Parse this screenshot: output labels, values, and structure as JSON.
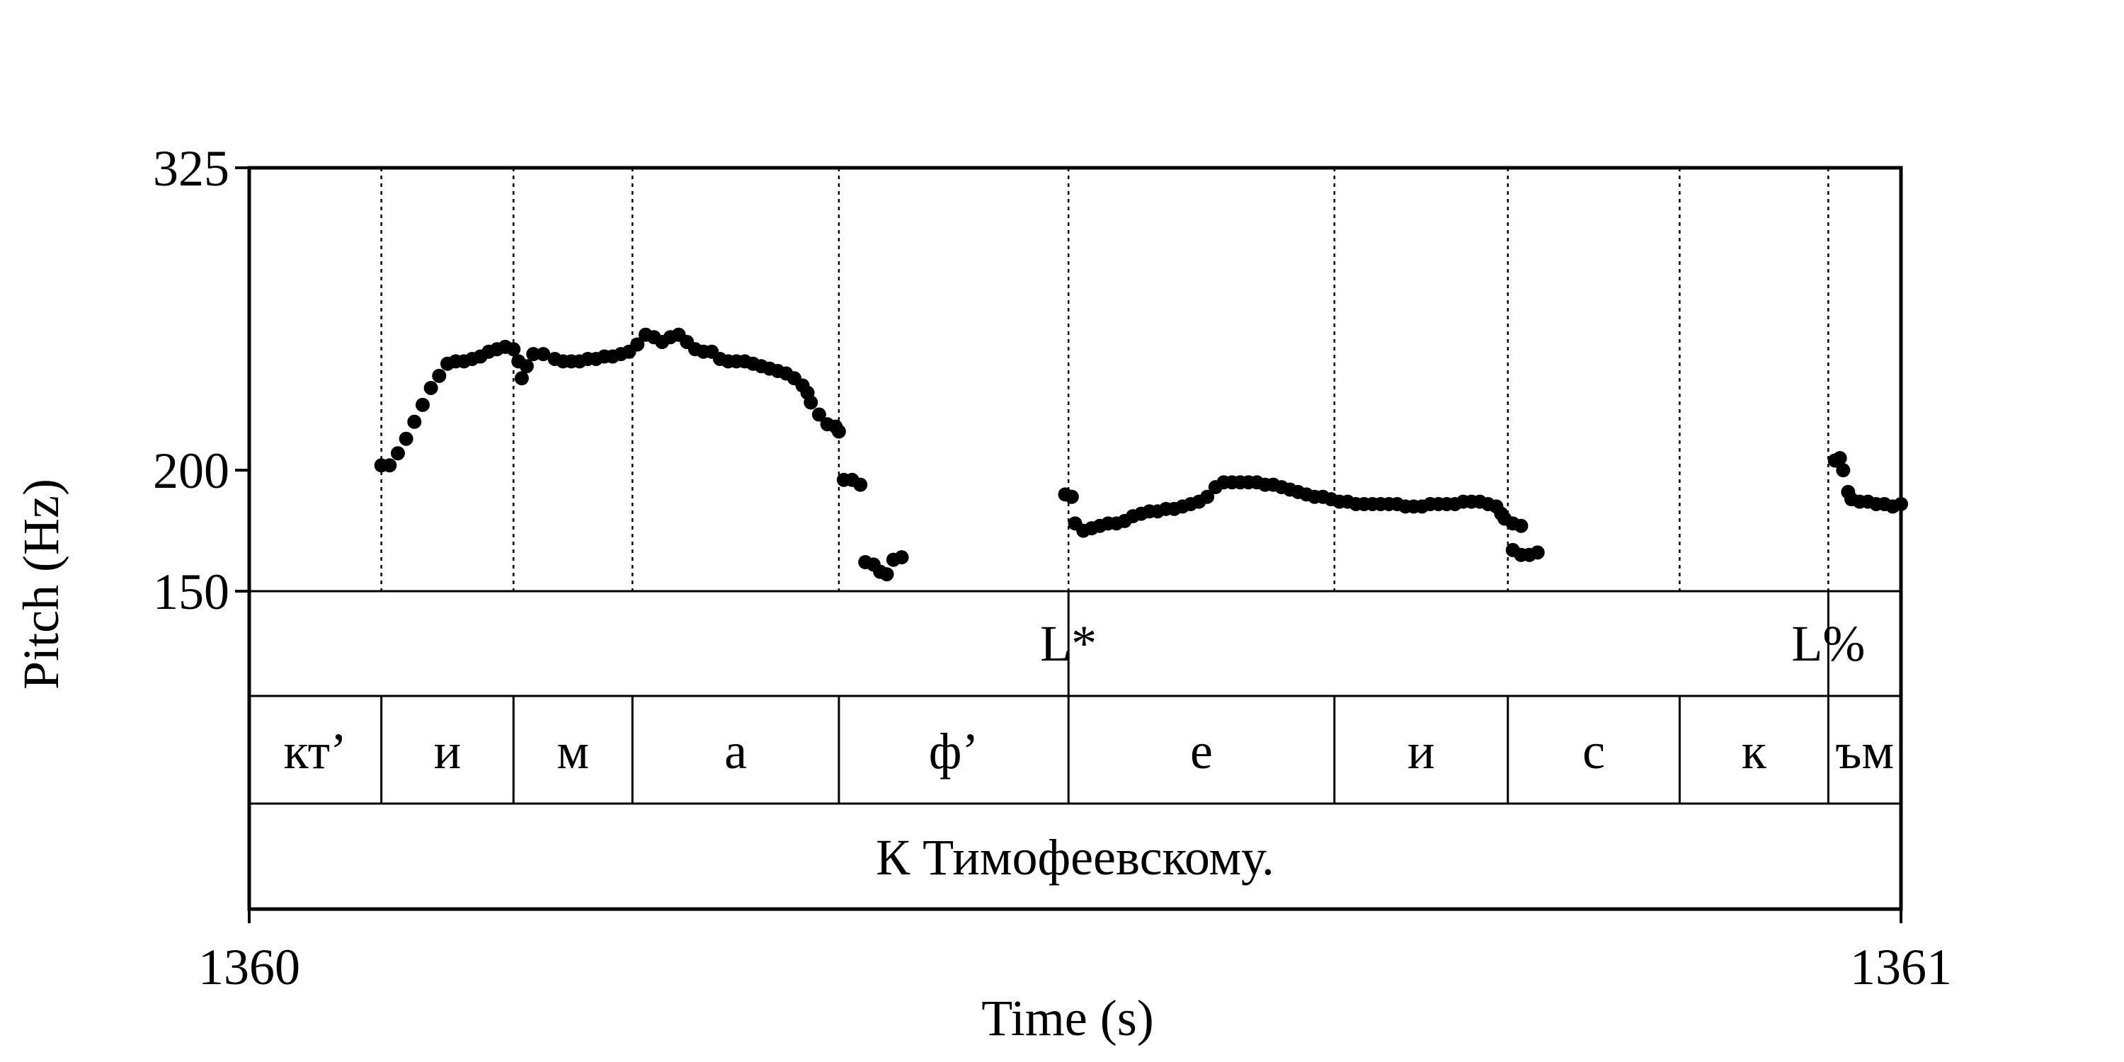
{
  "chart_data": {
    "type": "scatter",
    "xlabel": "Time (s)",
    "ylabel": "Pitch (Hz)",
    "xlim": [
      1360,
      1361
    ],
    "ylim": [
      150,
      325
    ],
    "x_ticks": [
      1360,
      1361
    ],
    "y_ticks": [
      150,
      200,
      325
    ],
    "x_tick_labels": [
      "1360",
      "1361"
    ],
    "y_tick_labels": [
      "150",
      "200",
      "325"
    ],
    "grid": false,
    "boundaries": [
      1360.08,
      1360.16,
      1360.232,
      1360.357,
      1360.496,
      1360.657,
      1360.762,
      1360.866,
      1360.956,
      1361.0
    ],
    "tones": [
      {
        "label": "L*",
        "x": 1360.496
      },
      {
        "label": "L%",
        "x": 1360.956
      }
    ],
    "segments": [
      {
        "label": "кт’",
        "start": 1360.0,
        "end": 1360.08
      },
      {
        "label": "и",
        "start": 1360.08,
        "end": 1360.16
      },
      {
        "label": "м",
        "start": 1360.16,
        "end": 1360.232
      },
      {
        "label": "а",
        "start": 1360.232,
        "end": 1360.357
      },
      {
        "label": "ф’",
        "start": 1360.357,
        "end": 1360.496
      },
      {
        "label": "е",
        "start": 1360.496,
        "end": 1360.657
      },
      {
        "label": "и",
        "start": 1360.657,
        "end": 1360.762
      },
      {
        "label": "с",
        "start": 1360.762,
        "end": 1360.866
      },
      {
        "label": "к",
        "start": 1360.866,
        "end": 1360.956
      },
      {
        "label": "ъм",
        "start": 1360.956,
        "end": 1361.0
      }
    ],
    "phrase": {
      "label": "К Тимофеевскому.",
      "start": 1360.0,
      "end": 1361.0
    },
    "pitch_points": [
      [
        1360.08,
        202
      ],
      [
        1360.085,
        202
      ],
      [
        1360.09,
        207
      ],
      [
        1360.095,
        213
      ],
      [
        1360.1,
        220
      ],
      [
        1360.105,
        227
      ],
      [
        1360.11,
        234
      ],
      [
        1360.115,
        239
      ],
      [
        1360.12,
        244
      ],
      [
        1360.125,
        245
      ],
      [
        1360.13,
        245
      ],
      [
        1360.135,
        246
      ],
      [
        1360.14,
        247
      ],
      [
        1360.145,
        249
      ],
      [
        1360.15,
        250
      ],
      [
        1360.155,
        251
      ],
      [
        1360.16,
        250
      ],
      [
        1360.163,
        245
      ],
      [
        1360.165,
        238
      ],
      [
        1360.168,
        243
      ],
      [
        1360.172,
        248
      ],
      [
        1360.178,
        248
      ],
      [
        1360.185,
        246
      ],
      [
        1360.19,
        245
      ],
      [
        1360.195,
        245
      ],
      [
        1360.2,
        245
      ],
      [
        1360.205,
        246
      ],
      [
        1360.21,
        246
      ],
      [
        1360.215,
        247
      ],
      [
        1360.22,
        247
      ],
      [
        1360.225,
        248
      ],
      [
        1360.23,
        249
      ],
      [
        1360.235,
        252
      ],
      [
        1360.24,
        256
      ],
      [
        1360.245,
        255
      ],
      [
        1360.25,
        253
      ],
      [
        1360.255,
        255
      ],
      [
        1360.26,
        256
      ],
      [
        1360.265,
        253
      ],
      [
        1360.27,
        250
      ],
      [
        1360.275,
        249
      ],
      [
        1360.28,
        249
      ],
      [
        1360.285,
        246
      ],
      [
        1360.29,
        245
      ],
      [
        1360.295,
        245
      ],
      [
        1360.3,
        245
      ],
      [
        1360.305,
        244
      ],
      [
        1360.31,
        243
      ],
      [
        1360.315,
        242
      ],
      [
        1360.32,
        241
      ],
      [
        1360.325,
        240
      ],
      [
        1360.33,
        238
      ],
      [
        1360.335,
        235
      ],
      [
        1360.338,
        232
      ],
      [
        1360.34,
        228
      ],
      [
        1360.345,
        223
      ],
      [
        1360.35,
        219
      ],
      [
        1360.355,
        218
      ],
      [
        1360.357,
        216
      ],
      [
        1360.36,
        196
      ],
      [
        1360.365,
        196
      ],
      [
        1360.37,
        194
      ],
      [
        1360.373,
        162
      ],
      [
        1360.378,
        161
      ],
      [
        1360.382,
        158
      ],
      [
        1360.386,
        157
      ],
      [
        1360.39,
        163
      ],
      [
        1360.395,
        164
      ],
      [
        1360.494,
        190
      ],
      [
        1360.498,
        189
      ],
      [
        1360.5,
        178
      ],
      [
        1360.505,
        175
      ],
      [
        1360.51,
        176
      ],
      [
        1360.515,
        177
      ],
      [
        1360.52,
        178
      ],
      [
        1360.525,
        178
      ],
      [
        1360.53,
        179
      ],
      [
        1360.535,
        181
      ],
      [
        1360.54,
        182
      ],
      [
        1360.545,
        183
      ],
      [
        1360.55,
        183
      ],
      [
        1360.555,
        184
      ],
      [
        1360.56,
        184
      ],
      [
        1360.565,
        185
      ],
      [
        1360.57,
        186
      ],
      [
        1360.575,
        187
      ],
      [
        1360.58,
        189
      ],
      [
        1360.585,
        193
      ],
      [
        1360.59,
        195
      ],
      [
        1360.595,
        195
      ],
      [
        1360.6,
        195
      ],
      [
        1360.605,
        195
      ],
      [
        1360.61,
        195
      ],
      [
        1360.615,
        194
      ],
      [
        1360.62,
        194
      ],
      [
        1360.625,
        193
      ],
      [
        1360.63,
        192
      ],
      [
        1360.635,
        191
      ],
      [
        1360.64,
        190
      ],
      [
        1360.645,
        189
      ],
      [
        1360.65,
        189
      ],
      [
        1360.655,
        188
      ],
      [
        1360.66,
        187
      ],
      [
        1360.665,
        187
      ],
      [
        1360.67,
        186
      ],
      [
        1360.675,
        186
      ],
      [
        1360.68,
        186
      ],
      [
        1360.685,
        186
      ],
      [
        1360.69,
        186
      ],
      [
        1360.695,
        186
      ],
      [
        1360.7,
        185
      ],
      [
        1360.705,
        185
      ],
      [
        1360.71,
        185
      ],
      [
        1360.715,
        186
      ],
      [
        1360.72,
        186
      ],
      [
        1360.725,
        186
      ],
      [
        1360.73,
        186
      ],
      [
        1360.735,
        187
      ],
      [
        1360.74,
        187
      ],
      [
        1360.745,
        187
      ],
      [
        1360.75,
        186
      ],
      [
        1360.755,
        185
      ],
      [
        1360.758,
        182
      ],
      [
        1360.76,
        180
      ],
      [
        1360.765,
        178
      ],
      [
        1360.77,
        177
      ],
      [
        1360.765,
        167
      ],
      [
        1360.77,
        165
      ],
      [
        1360.775,
        165
      ],
      [
        1360.78,
        166
      ],
      [
        1360.96,
        204
      ],
      [
        1360.963,
        205
      ],
      [
        1360.965,
        200
      ],
      [
        1360.968,
        191
      ],
      [
        1360.97,
        188
      ],
      [
        1360.975,
        187
      ],
      [
        1360.98,
        187
      ],
      [
        1360.985,
        186
      ],
      [
        1360.99,
        186
      ],
      [
        1360.995,
        185
      ],
      [
        1361.0,
        186
      ]
    ]
  }
}
